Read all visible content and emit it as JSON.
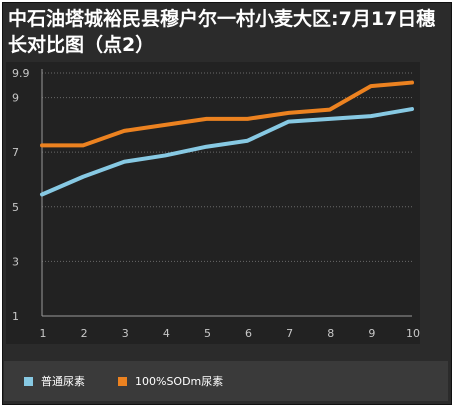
{
  "title": "中石油塔城裕民县穆户尔一村小麦大区:7月17日穗长对比图（点2）",
  "chart_data": {
    "type": "line",
    "title": "中石油塔城裕民县穆户尔一村小麦大区:7月17日穗长对比图（点2）",
    "xlabel": "",
    "ylabel": "",
    "x": [
      "1",
      "2",
      "3",
      "4",
      "5",
      "6",
      "7",
      "8",
      "9",
      "10"
    ],
    "ylim": [
      1,
      9.9
    ],
    "yticks": [
      1,
      3,
      5,
      7,
      9,
      9.9
    ],
    "ytick_labels": [
      "1",
      "3",
      "5",
      "7",
      "9",
      "9.9"
    ],
    "grid": true,
    "legend_position": "bottom",
    "series": [
      {
        "name": "普通尿素",
        "color": "#87c9e3",
        "values": [
          5.45,
          6.1,
          6.65,
          6.88,
          7.2,
          7.42,
          8.12,
          8.22,
          8.32,
          8.58
        ]
      },
      {
        "name": "100%SODm尿素",
        "color": "#ec8220",
        "values": [
          7.25,
          7.25,
          7.78,
          8.0,
          8.22,
          8.22,
          8.44,
          8.56,
          9.42,
          9.55
        ]
      }
    ]
  },
  "colors": {
    "background": "#2b2b2b",
    "plot_background": "#222222",
    "grid": "#6a6a6a",
    "axis_text": "#c8c8c8"
  }
}
